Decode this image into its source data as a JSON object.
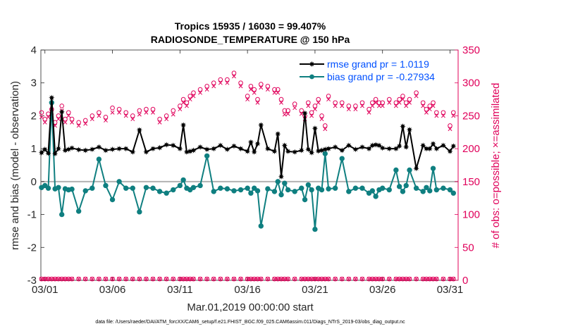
{
  "chart_data": {
    "type": "line",
    "title": "Tropics 15935 / 16030 = 99.407%",
    "subtitle": "RADIOSONDE_TEMPERATURE @ 150 hPa",
    "xlabel": "Mar.01,2019 00:00:00 start",
    "ylabel": "rmse and bias (model - observation)",
    "y2label": "# of obs: o=possible; ×=assimilated",
    "footnote": "data file: /Users/raeder/DAI/ATM_forcXX/CAM6_setup/f.e21.FHIST_BGC.f09_025.CAM6assim.011/Diags_NTrS_2019-03/obs_diag_output.nc",
    "xlim": [
      0.7,
      31.6
    ],
    "ylim": [
      -3,
      4
    ],
    "y2lim": [
      0,
      350
    ],
    "xticks": [
      1,
      6,
      11,
      16,
      21,
      26,
      31
    ],
    "xtick_labels": [
      "03/01",
      "03/06",
      "03/11",
      "03/16",
      "03/21",
      "03/26",
      "03/31"
    ],
    "yticks": [
      -3,
      -2,
      -1,
      0,
      1,
      2,
      3,
      4
    ],
    "y2ticks": [
      0,
      50,
      100,
      150,
      200,
      250,
      300,
      350
    ],
    "colors": {
      "rmse": "#000000",
      "bias": "#0f7f80",
      "obs": "#e0005a",
      "zero": "#b3b3b3"
    },
    "legend": [
      "rmse grand pr = 1.0119",
      "bias grand pr = -0.27934"
    ],
    "x": [
      0.75,
      1.0,
      1.25,
      1.5,
      1.75,
      2.0,
      2.25,
      2.5,
      2.75,
      3.0,
      3.5,
      4.0,
      4.5,
      5.0,
      5.5,
      6.0,
      6.5,
      7.0,
      7.5,
      8.0,
      8.5,
      9.0,
      9.5,
      10.0,
      10.5,
      11.0,
      11.25,
      11.5,
      11.75,
      12.0,
      12.5,
      13.0,
      13.5,
      14.0,
      14.5,
      15.0,
      15.5,
      16.0,
      16.25,
      16.5,
      16.75,
      17.0,
      17.5,
      18.0,
      18.25,
      18.5,
      18.75,
      19.0,
      19.5,
      20.0,
      20.25,
      20.5,
      20.75,
      21.0,
      21.25,
      21.5,
      21.75,
      22.0,
      22.5,
      23.0,
      23.5,
      24.0,
      24.5,
      25.0,
      25.25,
      25.5,
      25.75,
      26.0,
      26.5,
      27.0,
      27.25,
      27.5,
      27.75,
      28.0,
      28.5,
      29.0,
      29.25,
      29.5,
      29.75,
      30.0,
      30.5,
      31.0,
      31.25
    ],
    "series": [
      {
        "name": "rmse",
        "values": [
          0.88,
          0.98,
          0.86,
          2.55,
          0.85,
          1.0,
          2.12,
          0.95,
          0.98,
          1.02,
          0.97,
          0.95,
          0.98,
          1.05,
          0.95,
          0.98,
          1.0,
          1.0,
          0.9,
          1.57,
          0.9,
          1.0,
          1.03,
          1.12,
          1.1,
          1.0,
          1.72,
          0.9,
          0.92,
          0.95,
          1.05,
          0.98,
          1.0,
          1.1,
          0.98,
          1.08,
          1.0,
          0.92,
          1.2,
          0.9,
          1.15,
          1.72,
          1.0,
          0.92,
          1.45,
          0.15,
          1.1,
          0.92,
          0.9,
          0.95,
          2.08,
          0.98,
          0.88,
          1.62,
          0.93,
          0.95,
          0.98,
          1.0,
          1.05,
          0.95,
          1.1,
          0.98,
          1.05,
          1.0,
          1.1,
          1.12,
          1.1,
          1.02,
          1.0,
          1.0,
          1.08,
          1.68,
          1.05,
          1.58,
          0.4,
          1.1,
          1.0,
          1.0,
          1.15,
          1.0,
          1.1,
          0.92,
          1.08
        ]
      },
      {
        "name": "bias",
        "values": [
          -0.18,
          -0.12,
          -0.2,
          2.4,
          -0.22,
          -0.18,
          -1.0,
          -0.22,
          -0.25,
          -0.23,
          -0.9,
          -0.28,
          -0.2,
          0.68,
          -0.12,
          -0.55,
          0.0,
          -0.2,
          -0.2,
          -0.92,
          -0.18,
          -0.2,
          -0.3,
          -0.35,
          -0.25,
          -0.12,
          0.05,
          -0.2,
          -0.25,
          -0.18,
          -0.12,
          0.78,
          -0.3,
          -0.2,
          -0.22,
          -0.28,
          -0.25,
          -0.2,
          -0.35,
          -0.2,
          -0.28,
          -1.35,
          -0.22,
          -0.3,
          0.0,
          -0.4,
          -0.05,
          -0.25,
          -0.3,
          -0.2,
          -0.55,
          -0.1,
          -0.25,
          -1.45,
          -0.2,
          -0.25,
          0.85,
          -0.22,
          -0.2,
          0.7,
          -0.3,
          -0.2,
          -0.2,
          -0.35,
          -0.28,
          -0.45,
          -0.25,
          -0.2,
          -0.25,
          0.35,
          -0.15,
          -0.3,
          -0.12,
          0.35,
          -0.2,
          -0.3,
          -0.18,
          -0.28,
          0.4,
          -0.25,
          -0.2,
          -0.25,
          -0.35
        ]
      },
      {
        "name": "possible",
        "axis": "right",
        "values": [
          255,
          245,
          253,
          260,
          240,
          250,
          265,
          245,
          255,
          245,
          240,
          243,
          250,
          255,
          248,
          262,
          260,
          255,
          250,
          258,
          260,
          260,
          245,
          250,
          258,
          265,
          275,
          270,
          280,
          285,
          290,
          295,
          300,
          305,
          305,
          315,
          300,
          280,
          295,
          290,
          275,
          298,
          295,
          290,
          290,
          275,
          258,
          258,
          268,
          258,
          250,
          270,
          255,
          265,
          275,
          250,
          235,
          280,
          270,
          270,
          265,
          265,
          270,
          260,
          270,
          275,
          270,
          270,
          275,
          270,
          275,
          280,
          270,
          275,
          285,
          270,
          260,
          265,
          270,
          255,
          255,
          235,
          255
        ]
      },
      {
        "name": "assimilated",
        "axis": "right",
        "values": [
          248,
          240,
          248,
          255,
          235,
          245,
          258,
          240,
          250,
          240,
          235,
          238,
          245,
          250,
          243,
          255,
          255,
          250,
          245,
          252,
          255,
          255,
          240,
          245,
          252,
          260,
          270,
          265,
          275,
          280,
          285,
          290,
          295,
          300,
          300,
          310,
          295,
          275,
          290,
          285,
          270,
          293,
          290,
          285,
          285,
          270,
          252,
          253,
          262,
          253,
          245,
          265,
          250,
          260,
          270,
          245,
          230,
          275,
          265,
          265,
          260,
          260,
          265,
          255,
          265,
          270,
          265,
          265,
          270,
          265,
          270,
          275,
          265,
          270,
          280,
          265,
          255,
          260,
          265,
          250,
          250,
          230,
          250
        ]
      },
      {
        "name": "possible_bottom",
        "axis": "right",
        "values": [
          2,
          2,
          2,
          2,
          2,
          2,
          2,
          2,
          2,
          2,
          2,
          2,
          2,
          2,
          2,
          2,
          2,
          2,
          2,
          2,
          2,
          2,
          2,
          2,
          2,
          2,
          2,
          2,
          2,
          2,
          2,
          2,
          2,
          2,
          2,
          2,
          2,
          2,
          2,
          2,
          2,
          2,
          2,
          2,
          2,
          2,
          2,
          2,
          2,
          2,
          2,
          2,
          2,
          2,
          2,
          2,
          2,
          2,
          2,
          2,
          2,
          2,
          2,
          2,
          2,
          2,
          2,
          2,
          2,
          2,
          2,
          2,
          2,
          2,
          2,
          2,
          2,
          2,
          2,
          2,
          2,
          2,
          2
        ]
      }
    ]
  }
}
